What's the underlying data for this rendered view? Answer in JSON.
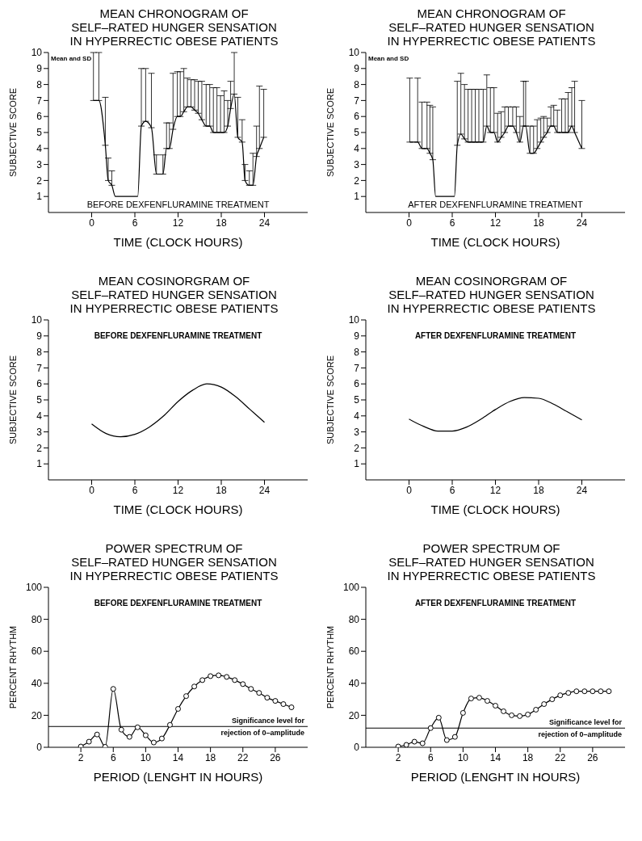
{
  "chart_data": [
    {
      "type": "line",
      "title": "MEAN CHRONOGRAM OF\nSELF–RATED HUNGER SENSATION\nIN HYPERRECTIC OBESE PATIENTS",
      "xlabel": "TIME (CLOCK HOURS)",
      "ylabel": "SUBJECTIVE SCORE",
      "annotations": [
        "Mean and SD",
        "BEFORE DEXFENFLURAMINE TREATMENT"
      ],
      "marker": "none",
      "xlim": [
        -6,
        30
      ],
      "xticks": [
        0,
        6,
        12,
        18,
        24
      ],
      "ylim": [
        0,
        10
      ],
      "yticks": [
        1,
        2,
        3,
        4,
        5,
        6,
        7,
        8,
        9,
        10
      ],
      "series": [
        {
          "color": "#000000",
          "x": [
            0.25,
            1,
            1.9,
            2.3,
            2.8,
            3.3,
            6.4,
            6.9,
            7.5,
            8.3,
            9,
            9.9,
            10.4,
            10.8,
            11.3,
            11.9,
            12.3,
            12.8,
            13.3,
            13.8,
            14.3,
            14.8,
            15.3,
            15.9,
            16.4,
            16.9,
            17.4,
            17.9,
            18.4,
            18.9,
            19.3,
            19.8,
            20.3,
            20.9,
            21.3,
            21.9,
            22.4,
            22.9,
            23.3,
            23.9
          ],
          "values": [
            7,
            7,
            4.2,
            2,
            1.7,
            1,
            1,
            5.4,
            5.7,
            5.3,
            2.4,
            2.4,
            4,
            4,
            5.2,
            6,
            6,
            6.3,
            6.6,
            6.6,
            6.4,
            6.2,
            5.8,
            5.4,
            5.4,
            5,
            5,
            5,
            5,
            5.4,
            6.5,
            7.4,
            4.7,
            4.4,
            2,
            1.7,
            1.7,
            3.5,
            4,
            4.7
          ],
          "errors": [
            [
              7,
              10
            ],
            [
              7,
              10
            ],
            [
              4.2,
              7.2
            ],
            [
              2,
              3.4
            ],
            [
              1.7,
              2.6
            ],
            null,
            null,
            [
              5.4,
              9
            ],
            [
              5.7,
              9
            ],
            [
              5.3,
              8.7
            ],
            [
              2.4,
              3.6
            ],
            [
              2.4,
              3.6
            ],
            [
              4,
              5.6
            ],
            [
              4,
              5.6
            ],
            [
              5.2,
              8.7
            ],
            [
              6,
              8.8
            ],
            [
              6,
              8.8
            ],
            [
              6.3,
              9
            ],
            [
              6.6,
              8.4
            ],
            [
              6.6,
              8.3
            ],
            [
              6.4,
              8.3
            ],
            [
              6.2,
              8.2
            ],
            [
              5.8,
              8.2
            ],
            [
              5.4,
              8
            ],
            [
              5.4,
              8
            ],
            [
              5,
              7.8
            ],
            [
              5,
              7.8
            ],
            [
              5,
              7.3
            ],
            [
              5,
              7.6
            ],
            [
              5.4,
              7
            ],
            [
              6.5,
              8.2
            ],
            [
              7.4,
              10
            ],
            [
              4.7,
              7.2
            ],
            [
              4.4,
              5.8
            ],
            [
              2,
              3
            ],
            [
              1.7,
              2.6
            ],
            [
              1.7,
              3.7
            ],
            [
              3.5,
              5.4
            ],
            [
              4,
              7.9
            ],
            [
              4.7,
              7.7
            ]
          ]
        }
      ]
    },
    {
      "type": "line",
      "title": "MEAN CHRONOGRAM OF\nSELF–RATED HUNGER SENSATION\nIN HYPERRECTIC OBESE PATIENTS",
      "xlabel": "TIME (CLOCK HOURS)",
      "ylabel": "SUBJECTIVE SCORE",
      "annotations": [
        "Mean and SD",
        "AFTER DEXFENFLURAMINE TREATMENT"
      ],
      "marker": "none",
      "xlim": [
        -6,
        30
      ],
      "xticks": [
        0,
        6,
        12,
        18,
        24
      ],
      "ylim": [
        0,
        10
      ],
      "yticks": [
        1,
        2,
        3,
        4,
        5,
        6,
        7,
        8,
        9,
        10
      ],
      "series": [
        {
          "color": "#000000",
          "x": [
            0.1,
            1.2,
            1.8,
            2.5,
            2.9,
            3.3,
            3.7,
            6.3,
            6.7,
            7.2,
            7.7,
            8.2,
            8.7,
            9.2,
            9.7,
            10.3,
            10.8,
            11.3,
            11.8,
            12.3,
            12.8,
            13.3,
            13.8,
            14.4,
            14.9,
            15.4,
            15.9,
            16.2,
            16.8,
            17.3,
            17.8,
            18.3,
            18.7,
            19.2,
            19.7,
            20.1,
            20.6,
            21.2,
            21.7,
            22.1,
            22.6,
            23,
            24
          ],
          "values": [
            4.4,
            4.4,
            4,
            4,
            3.7,
            3.3,
            1,
            1,
            4.2,
            4.9,
            4.6,
            4.4,
            4.4,
            4.4,
            4.4,
            4.4,
            5.4,
            5,
            5,
            4.4,
            4.7,
            5,
            5.4,
            5.4,
            5,
            4.4,
            5.4,
            5.4,
            3.7,
            3.7,
            4,
            4.4,
            4.7,
            5,
            5.4,
            5.4,
            5,
            5,
            5,
            5,
            5.4,
            5,
            4
          ],
          "errors": [
            [
              4.4,
              8.4
            ],
            [
              4.4,
              8.4
            ],
            [
              4,
              6.9
            ],
            [
              4,
              6.9
            ],
            [
              3.7,
              6.7
            ],
            [
              3.3,
              6.6
            ],
            null,
            null,
            [
              4.2,
              8.2
            ],
            [
              4.9,
              8.7
            ],
            [
              4.6,
              8
            ],
            [
              4.4,
              7.7
            ],
            [
              4.4,
              7.7
            ],
            [
              4.4,
              7.7
            ],
            [
              4.4,
              7.7
            ],
            [
              4.4,
              7.7
            ],
            [
              5.4,
              8.6
            ],
            [
              5,
              7.8
            ],
            [
              5,
              7.8
            ],
            [
              4.4,
              6.2
            ],
            [
              4.7,
              6.3
            ],
            [
              5,
              6.6
            ],
            [
              5.4,
              6.6
            ],
            [
              5.4,
              6.6
            ],
            [
              5,
              6.6
            ],
            [
              4.4,
              6
            ],
            [
              5.4,
              8.2
            ],
            [
              5.4,
              8.2
            ],
            [
              3.7,
              5.4
            ],
            [
              3.7,
              5.4
            ],
            [
              4,
              5.8
            ],
            [
              4.4,
              5.9
            ],
            [
              4.7,
              6
            ],
            [
              5,
              5.9
            ],
            [
              5.4,
              6.6
            ],
            [
              5.4,
              6.7
            ],
            [
              5,
              6.4
            ],
            [
              5,
              7.1
            ],
            [
              5,
              7.1
            ],
            [
              5,
              7.5
            ],
            [
              5.4,
              7.8
            ],
            [
              5,
              8.2
            ],
            [
              4,
              7
            ]
          ]
        }
      ]
    },
    {
      "type": "line",
      "title": "MEAN COSINORGRAM OF\nSELF–RATED HUNGER SENSATION\nIN HYPERRECTIC OBESE PATIENTS",
      "xlabel": "TIME (CLOCK HOURS)",
      "ylabel": "SUBJECTIVE SCORE",
      "annotations": [
        "BEFORE DEXFENFLURAMINE TREATMENT"
      ],
      "marker": "none",
      "xlim": [
        -6,
        30
      ],
      "xticks": [
        0,
        6,
        12,
        18,
        24
      ],
      "ylim": [
        0,
        10
      ],
      "yticks": [
        1,
        2,
        3,
        4,
        5,
        6,
        7,
        8,
        9,
        10
      ],
      "series": [
        {
          "color": "#000000",
          "x": [
            0,
            2,
            4,
            6,
            8,
            10,
            12,
            14,
            16,
            18,
            20,
            22,
            24
          ],
          "values": [
            3.5,
            2.9,
            2.7,
            2.85,
            3.3,
            4,
            4.9,
            5.6,
            6,
            5.8,
            5.2,
            4.4,
            3.6
          ]
        }
      ]
    },
    {
      "type": "line",
      "title": "MEAN COSINORGRAM OF\nSELF–RATED HUNGER SENSATION\nIN HYPERRECTIC OBESE PATIENTS",
      "xlabel": "TIME (CLOCK HOURS)",
      "ylabel": "SUBJECTIVE SCORE",
      "annotations": [
        "AFTER DEXFENFLURAMINE TREATMENT"
      ],
      "marker": "none",
      "xlim": [
        -6,
        30
      ],
      "xticks": [
        0,
        6,
        12,
        18,
        24
      ],
      "ylim": [
        0,
        10
      ],
      "yticks": [
        1,
        2,
        3,
        4,
        5,
        6,
        7,
        8,
        9,
        10
      ],
      "series": [
        {
          "color": "#000000",
          "x": [
            0,
            2,
            4,
            6,
            8,
            10,
            12,
            14,
            16,
            18,
            20,
            22,
            24
          ],
          "values": [
            3.8,
            3.35,
            3.05,
            3.05,
            3.3,
            3.8,
            4.4,
            4.9,
            5.15,
            5.1,
            4.75,
            4.25,
            3.75
          ]
        }
      ]
    },
    {
      "type": "line",
      "title": "POWER SPECTRUM OF\nSELF–RATED HUNGER SENSATION\nIN HYPERRECTIC OBESE PATIENTS",
      "xlabel": "PERIOD (LENGHT IN HOURS)",
      "ylabel": "PERCENT RHYTHM",
      "annotations": [
        "BEFORE DEXFENFLURAMINE TREATMENT"
      ],
      "marker": "circle",
      "xlim": [
        -2,
        30
      ],
      "xticks": [
        2,
        6,
        10,
        14,
        18,
        22,
        26
      ],
      "ylim": [
        0,
        100
      ],
      "yticks": [
        0,
        20,
        40,
        60,
        80,
        100
      ],
      "ref_lines": [
        {
          "axis": "y",
          "value": 13,
          "label": "Significance level for rejection of 0–amplitude"
        }
      ],
      "series": [
        {
          "color": "#000000",
          "x": [
            2,
            3,
            4,
            5,
            6,
            7,
            8,
            9,
            10,
            11,
            12,
            13,
            14,
            15,
            16,
            17,
            18,
            19,
            20,
            21,
            22,
            23,
            24,
            25,
            26,
            27,
            28
          ],
          "values": [
            0.5,
            3.5,
            8,
            0.3,
            36.5,
            11,
            6.5,
            12.5,
            7.5,
            3,
            5.5,
            14,
            24,
            32,
            38,
            42,
            44.5,
            45,
            44,
            42,
            39.5,
            36.5,
            34,
            31,
            29,
            27,
            25
          ]
        }
      ]
    },
    {
      "type": "line",
      "title": "POWER SPECTRUM OF\nSELF–RATED HUNGER SENSATION\nIN HYPERRECTIC OBESE PATIENTS",
      "xlabel": "PERIOD (LENGHT IN HOURS)",
      "ylabel": "PERCENT RHYTHM",
      "annotations": [
        "AFTER DEXFENFLURAMINE TREATMENT"
      ],
      "marker": "circle",
      "xlim": [
        -2,
        30
      ],
      "xticks": [
        2,
        6,
        10,
        14,
        18,
        22,
        26
      ],
      "ylim": [
        0,
        100
      ],
      "yticks": [
        0,
        20,
        40,
        60,
        80,
        100
      ],
      "ref_lines": [
        {
          "axis": "y",
          "value": 12,
          "label": "Significance level for rejection of 0–amplitude"
        }
      ],
      "series": [
        {
          "color": "#000000",
          "x": [
            2,
            3,
            4,
            5,
            6,
            7,
            8,
            9,
            10,
            11,
            12,
            13,
            14,
            15,
            16,
            17,
            18,
            19,
            20,
            21,
            22,
            23,
            24,
            25,
            26,
            27,
            28
          ],
          "values": [
            0.5,
            1.5,
            3.5,
            2.5,
            12,
            18.5,
            4.5,
            6.5,
            21.5,
            30.5,
            31,
            29,
            26,
            22.5,
            20,
            19.5,
            20.5,
            23.5,
            27,
            30,
            32.5,
            34,
            35,
            35,
            35,
            35,
            35
          ]
        }
      ]
    }
  ]
}
